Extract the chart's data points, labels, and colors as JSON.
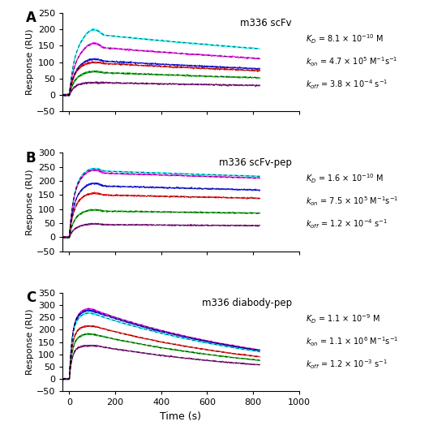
{
  "panels": [
    {
      "label": "A",
      "title": "m336 scFv",
      "ylim": [
        -50,
        250
      ],
      "yticks": [
        -50,
        0,
        50,
        100,
        150,
        200,
        250
      ],
      "kD_text": "$K_D$ = 8.1 × 10$^{-10}$ M",
      "kon_text": "$k_{on}$ = 4.7 × 10$^5$ M$^{-1}$s$^{-1}$",
      "koff_text": "$k_{off}$ = 3.8 × 10$^{-4}$ s$^{-1}$",
      "koff_rate": 0.00038,
      "kon_tau": 22,
      "curves": [
        {
          "color": "#00ffff",
          "plateau": 155,
          "peak": 200,
          "peak_time": 150
        },
        {
          "color": "#ff00ff",
          "plateau": 122,
          "peak": 158,
          "peak_time": 150
        },
        {
          "color": "#0000ff",
          "plateau": 93,
          "peak": 110,
          "peak_time": 150
        },
        {
          "color": "#ff0000",
          "plateau": 90,
          "peak": 100,
          "peak_time": 150
        },
        {
          "color": "#00aa00",
          "plateau": 62,
          "peak": 72,
          "peak_time": 150
        },
        {
          "color": "#800080",
          "plateau": 37,
          "peak": 38,
          "peak_time": 150
        }
      ]
    },
    {
      "label": "B",
      "title": "m336 scFv-pep",
      "ylim": [
        -50,
        300
      ],
      "yticks": [
        -50,
        0,
        50,
        100,
        150,
        200,
        250,
        300
      ],
      "kD_text": "$K_D$ = 1.6 × 10$^{-10}$ M",
      "kon_text": "$k_{on}$ = 7.5 × 10$^5$ M$^{-1}$s$^{-1}$",
      "koff_text": "$k_{off}$ = 1.2 × 10$^{-4}$ s$^{-1}$",
      "koff_rate": 0.00012,
      "kon_tau": 20,
      "curves": [
        {
          "color": "#00ffff",
          "plateau": 220,
          "peak": 245,
          "peak_time": 150
        },
        {
          "color": "#ff00ff",
          "plateau": 210,
          "peak": 240,
          "peak_time": 150
        },
        {
          "color": "#0000ff",
          "plateau": 167,
          "peak": 192,
          "peak_time": 150
        },
        {
          "color": "#ff0000",
          "plateau": 140,
          "peak": 157,
          "peak_time": 150
        },
        {
          "color": "#00aa00",
          "plateau": 85,
          "peak": 98,
          "peak_time": 150
        },
        {
          "color": "#800080",
          "plateau": 40,
          "peak": 48,
          "peak_time": 150
        }
      ]
    },
    {
      "label": "C",
      "title": "m336 diabody-pep",
      "ylim": [
        -50,
        350
      ],
      "yticks": [
        -50,
        0,
        50,
        100,
        150,
        200,
        250,
        300,
        350
      ],
      "kD_text": "$K_D$ = 1.1 × 10$^{-9}$ M",
      "kon_text": "$k_{on}$ = 1.1 × 10$^6$ M$^{-1}$s$^{-1}$",
      "koff_text": "$k_{off}$ = 1.2 × 10$^{-3}$ s$^{-1}$",
      "koff_rate": 0.0012,
      "kon_tau": 13,
      "curves": [
        {
          "color": "#ff00ff",
          "plateau": 262,
          "peak": 285,
          "peak_time": 120
        },
        {
          "color": "#0000ff",
          "plateau": 258,
          "peak": 278,
          "peak_time": 120
        },
        {
          "color": "#00ffff",
          "plateau": 248,
          "peak": 268,
          "peak_time": 120
        },
        {
          "color": "#ff0000",
          "plateau": 205,
          "peak": 215,
          "peak_time": 120
        },
        {
          "color": "#00aa00",
          "plateau": 170,
          "peak": 183,
          "peak_time": 120
        },
        {
          "color": "#800080",
          "plateau": 133,
          "peak": 135,
          "peak_time": 120
        }
      ]
    }
  ],
  "xlabel": "Time (s)",
  "ylabel": "Response (RU)",
  "xmax": 830,
  "xticks": [
    0,
    200,
    400,
    600,
    800,
    1000
  ],
  "xlim": [
    -30,
    1000
  ]
}
